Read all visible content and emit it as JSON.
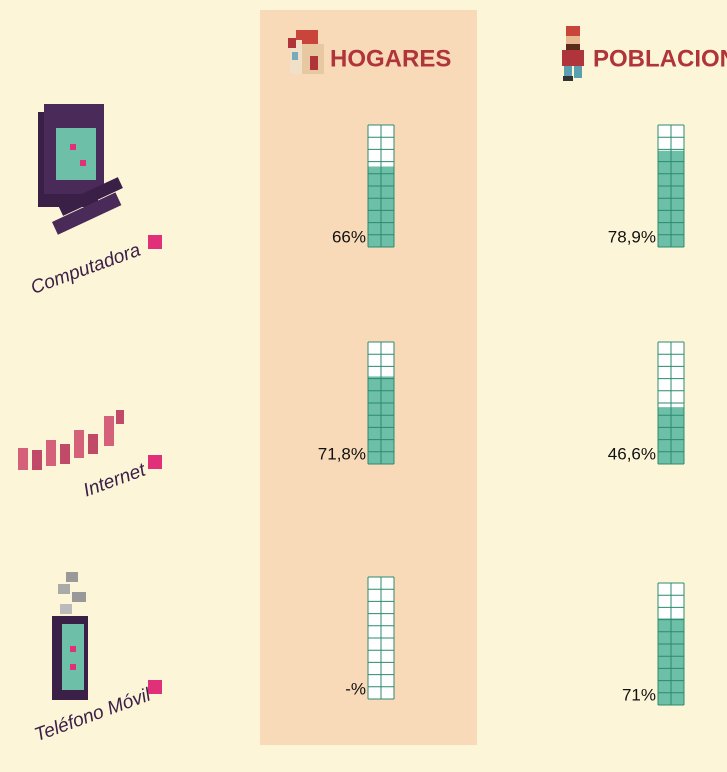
{
  "chart_data": {
    "type": "gauge",
    "categories": [
      "Computadora",
      "Internet",
      "Teléfono Móvil"
    ],
    "ylim": [
      0,
      100
    ],
    "series": [
      {
        "name": "HOGARES",
        "color": "#6dbfa8",
        "values": [
          66,
          71.8,
          null
        ],
        "value_labels": [
          "66%",
          "71,8%",
          "-%"
        ]
      },
      {
        "name": "POBLACION",
        "color": "#6dbfa8",
        "values": [
          78.9,
          46.6,
          71
        ],
        "value_labels": [
          "78,9%",
          "46,6%",
          "71%"
        ]
      }
    ]
  }
}
